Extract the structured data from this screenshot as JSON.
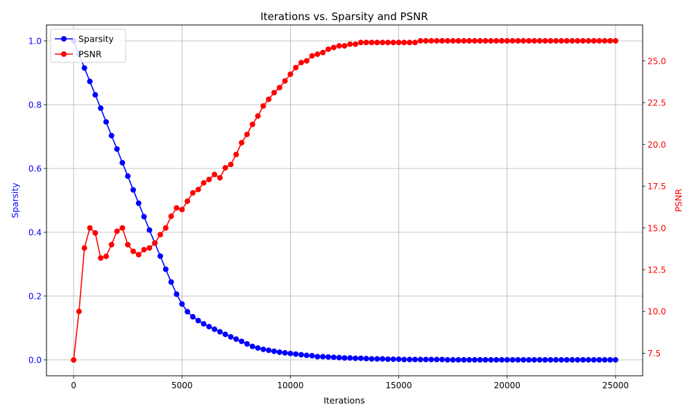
{
  "chart_data": {
    "type": "line",
    "title": "Iterations vs. Sparsity and PSNR",
    "xlabel": "Iterations",
    "ylabel_left": "Sparsity",
    "ylabel_right": "PSNR",
    "xlim": [
      -1250,
      26250
    ],
    "ylim_left": [
      -0.05,
      1.05
    ],
    "ylim_right": [
      6.15,
      27.15
    ],
    "xticks": [
      0,
      5000,
      10000,
      15000,
      20000,
      25000
    ],
    "xtick_labels": [
      "0",
      "5000",
      "10000",
      "15000",
      "20000",
      "25000"
    ],
    "yticks_left": [
      0.0,
      0.2,
      0.4,
      0.6,
      0.8,
      1.0
    ],
    "ytick_labels_left": [
      "0.0",
      "0.2",
      "0.4",
      "0.6",
      "0.8",
      "1.0"
    ],
    "yticks_right": [
      7.5,
      10.0,
      12.5,
      15.0,
      17.5,
      20.0,
      22.5,
      25.0
    ],
    "ytick_labels_right": [
      "7.5",
      "10.0",
      "12.5",
      "15.0",
      "17.5",
      "20.0",
      "22.5",
      "25.0"
    ],
    "grid": true,
    "legend_position": "top-left",
    "x": [
      0,
      250,
      500,
      750,
      1000,
      1250,
      1500,
      1750,
      2000,
      2250,
      2500,
      2750,
      3000,
      3250,
      3500,
      3750,
      4000,
      4250,
      4500,
      4750,
      5000,
      5250,
      5500,
      5750,
      6000,
      6250,
      6500,
      6750,
      7000,
      7250,
      7500,
      7750,
      8000,
      8250,
      8500,
      8750,
      9000,
      9250,
      9500,
      9750,
      10000,
      10250,
      10500,
      10750,
      11000,
      11250,
      11500,
      11750,
      12000,
      12250,
      12500,
      12750,
      13000,
      13250,
      13500,
      13750,
      14000,
      14250,
      14500,
      14750,
      15000,
      15250,
      15500,
      15750,
      16000,
      16250,
      16500,
      16750,
      17000,
      17250,
      17500,
      17750,
      18000,
      18250,
      18500,
      18750,
      19000,
      19250,
      19500,
      19750,
      20000,
      20250,
      20500,
      20750,
      21000,
      21250,
      21500,
      21750,
      22000,
      22250,
      22500,
      22750,
      23000,
      23250,
      23500,
      23750,
      24000,
      24250,
      24500,
      24750,
      25000
    ],
    "series": [
      {
        "name": "Sparsity",
        "axis": "left",
        "color": "#0000ff",
        "values": [
          1.0,
          0.958,
          0.915,
          0.873,
          0.831,
          0.789,
          0.746,
          0.703,
          0.661,
          0.618,
          0.576,
          0.533,
          0.491,
          0.449,
          0.407,
          0.366,
          0.325,
          0.284,
          0.244,
          0.206,
          0.175,
          0.151,
          0.135,
          0.123,
          0.113,
          0.104,
          0.096,
          0.088,
          0.08,
          0.072,
          0.065,
          0.058,
          0.05,
          0.042,
          0.037,
          0.033,
          0.03,
          0.027,
          0.024,
          0.022,
          0.02,
          0.018,
          0.016,
          0.014,
          0.013,
          0.01,
          0.01,
          0.009,
          0.008,
          0.007,
          0.006,
          0.006,
          0.005,
          0.005,
          0.004,
          0.003,
          0.003,
          0.003,
          0.002,
          0.002,
          0.002,
          0.001,
          0.001,
          0.001,
          0.001,
          0.001,
          0.001,
          0.001,
          0.001,
          0.0,
          0.0,
          0.0,
          0.0,
          0.0,
          0.0,
          0.0,
          0.0,
          0.0,
          0.0,
          0.0,
          0.0,
          0.0,
          0.0,
          0.0,
          0.0,
          0.0,
          0.0,
          0.0,
          0.0,
          0.0,
          0.0,
          0.0,
          0.0,
          0.0,
          0.0,
          0.0,
          0.0,
          0.0,
          0.0,
          0.0,
          0.0
        ]
      },
      {
        "name": "PSNR",
        "axis": "right",
        "color": "#ff0000",
        "values": [
          7.1,
          10.0,
          13.8,
          15.0,
          14.7,
          13.2,
          13.3,
          14.0,
          14.8,
          15.0,
          14.0,
          13.6,
          13.4,
          13.7,
          13.8,
          14.1,
          14.6,
          15.0,
          15.7,
          16.2,
          16.1,
          16.6,
          17.1,
          17.3,
          17.7,
          17.9,
          18.2,
          18.0,
          18.6,
          18.8,
          19.4,
          20.1,
          20.6,
          21.2,
          21.7,
          22.3,
          22.7,
          23.1,
          23.4,
          23.8,
          24.2,
          24.6,
          24.9,
          25.0,
          25.3,
          25.4,
          25.5,
          25.7,
          25.8,
          25.9,
          25.9,
          26.0,
          26.0,
          26.1,
          26.1,
          26.1,
          26.1,
          26.1,
          26.1,
          26.1,
          26.1,
          26.1,
          26.1,
          26.1,
          26.2,
          26.2,
          26.2,
          26.2,
          26.2,
          26.2,
          26.2,
          26.2,
          26.2,
          26.2,
          26.2,
          26.2,
          26.2,
          26.2,
          26.2,
          26.2,
          26.2,
          26.2,
          26.2,
          26.2,
          26.2,
          26.2,
          26.2,
          26.2,
          26.2,
          26.2,
          26.2,
          26.2,
          26.2,
          26.2,
          26.2,
          26.2,
          26.2,
          26.2,
          26.2,
          26.2,
          26.2
        ]
      }
    ]
  }
}
